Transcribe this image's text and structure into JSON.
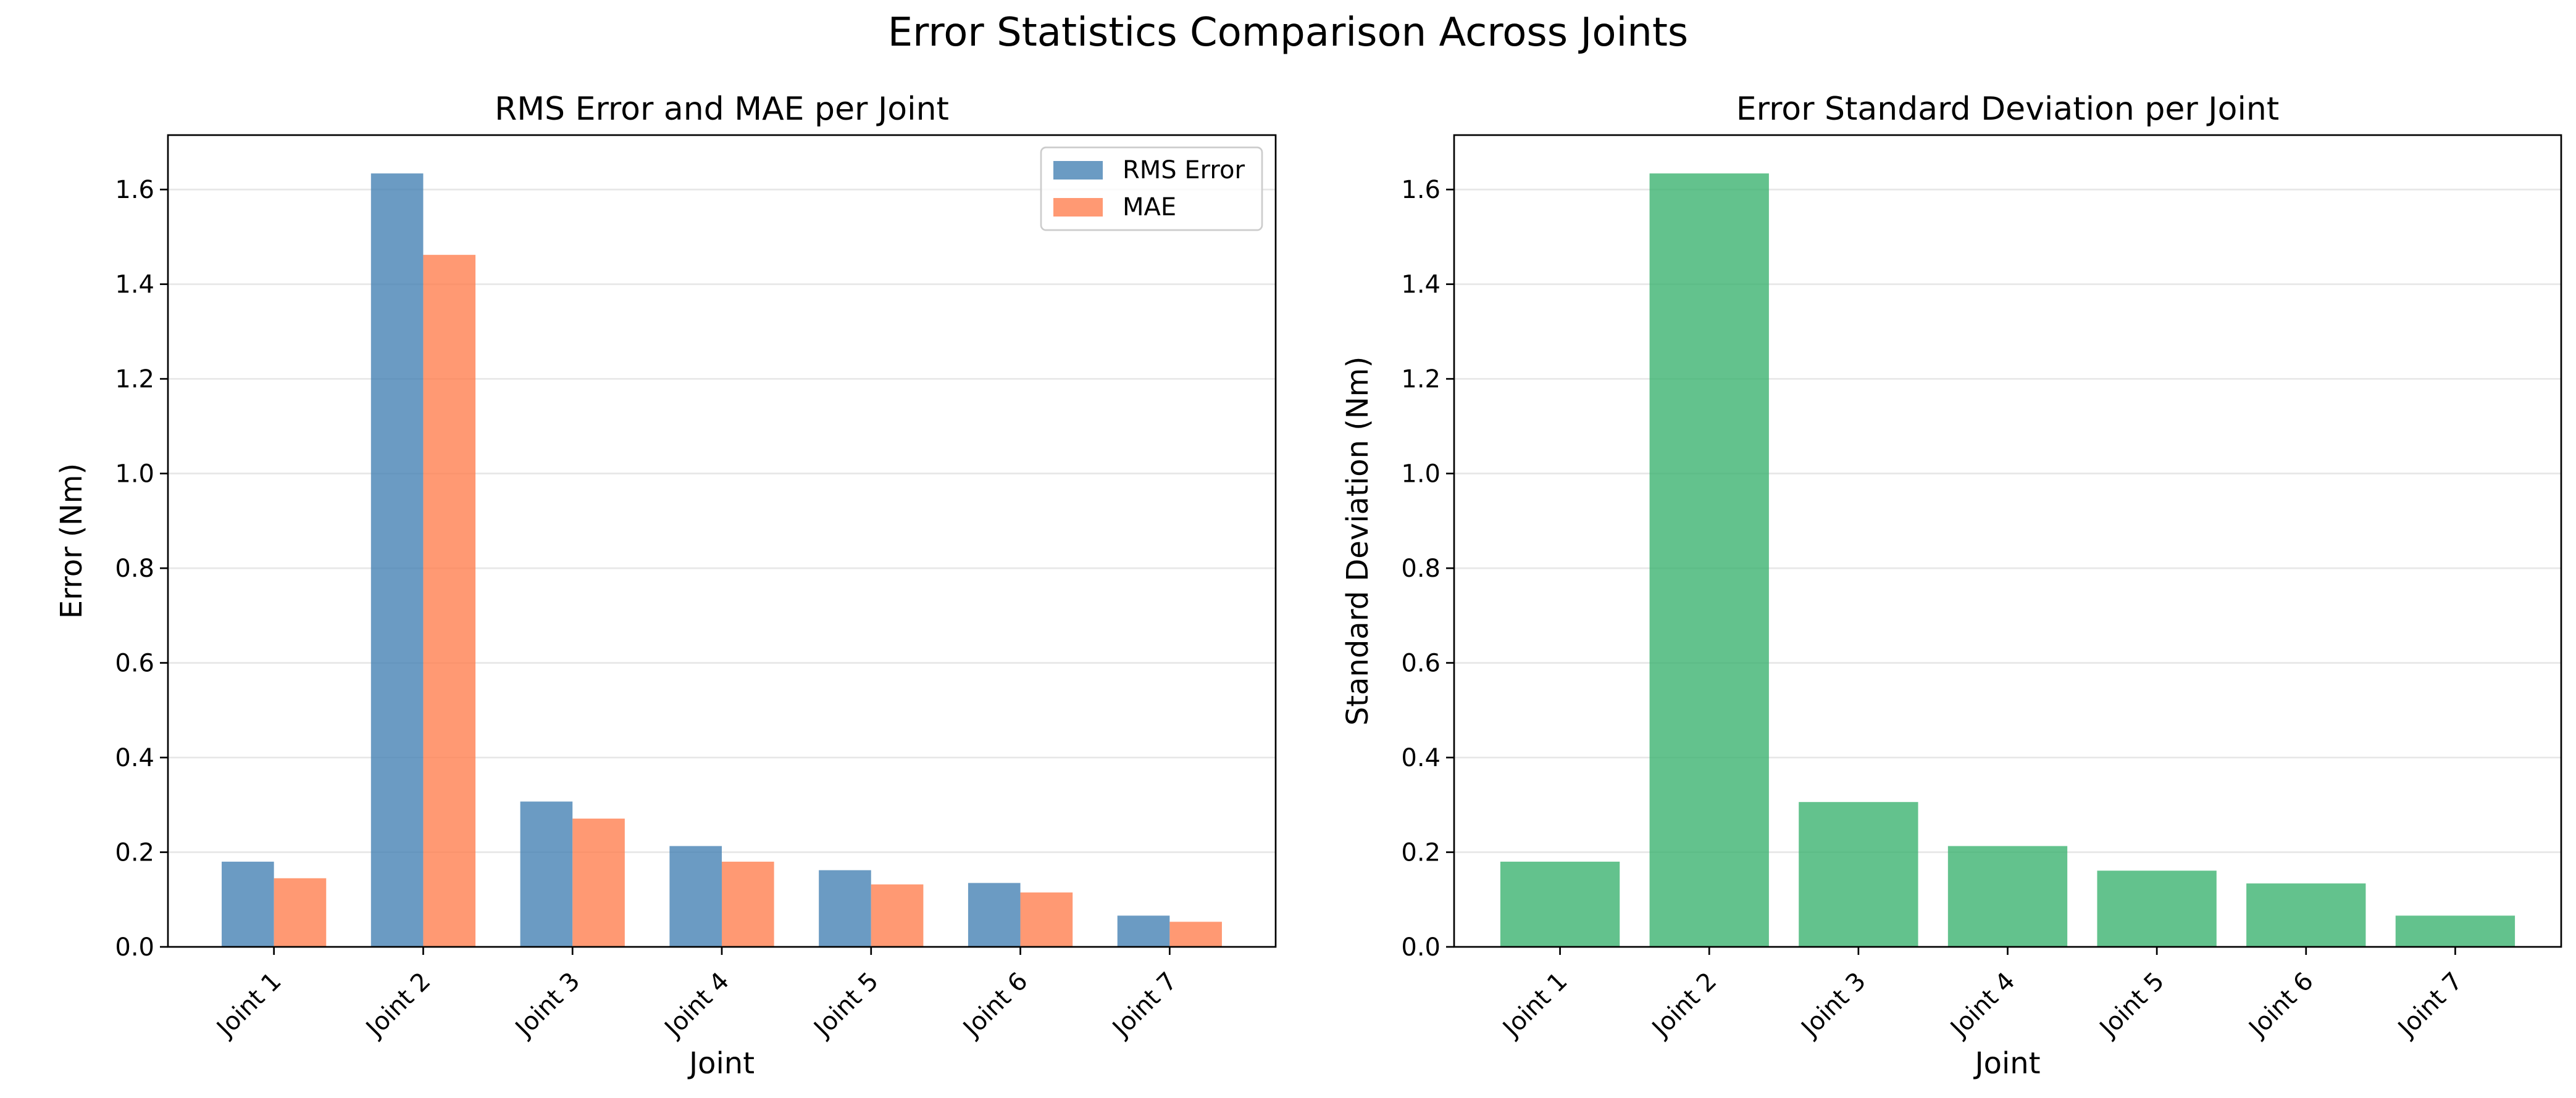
{
  "figure": {
    "suptitle": "Error Statistics Comparison Across Joints"
  },
  "chart_data": [
    {
      "type": "bar",
      "title": "RMS Error and MAE per Joint",
      "xlabel": "Joint",
      "ylabel": "Error (Nm)",
      "categories": [
        "Joint 1",
        "Joint 2",
        "Joint 3",
        "Joint 4",
        "Joint 5",
        "Joint 6",
        "Joint 7"
      ],
      "series": [
        {
          "name": "RMS Error",
          "color": "#4682b4",
          "values": [
            0.18,
            1.634,
            0.307,
            0.213,
            0.162,
            0.135,
            0.066
          ]
        },
        {
          "name": "MAE",
          "color": "#ff7f50",
          "values": [
            0.145,
            1.462,
            0.271,
            0.18,
            0.132,
            0.115,
            0.053
          ]
        }
      ],
      "ylim": [
        0,
        1.715
      ],
      "yticks": [
        "0.0",
        "0.2",
        "0.4",
        "0.6",
        "0.8",
        "1.0",
        "1.2",
        "1.4",
        "1.6"
      ],
      "grid": "y",
      "legend": "top-right"
    },
    {
      "type": "bar",
      "title": "Error Standard Deviation per Joint",
      "xlabel": "Joint",
      "ylabel": "Standard Deviation (Nm)",
      "categories": [
        "Joint 1",
        "Joint 2",
        "Joint 3",
        "Joint 4",
        "Joint 5",
        "Joint 6",
        "Joint 7"
      ],
      "series": [
        {
          "color": "#3cb371",
          "values": [
            0.18,
            1.634,
            0.306,
            0.213,
            0.161,
            0.134,
            0.066
          ]
        }
      ],
      "ylim": [
        0,
        1.715
      ],
      "yticks": [
        "0.0",
        "0.2",
        "0.4",
        "0.6",
        "0.8",
        "1.0",
        "1.2",
        "1.4",
        "1.6"
      ],
      "grid": "y"
    }
  ]
}
